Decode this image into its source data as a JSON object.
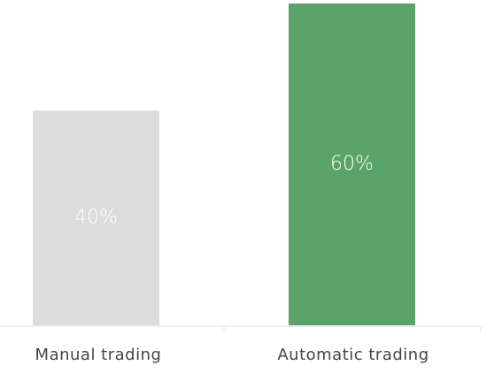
{
  "chart_data": {
    "type": "bar",
    "categories": [
      "Manual trading",
      "Automatic trading"
    ],
    "values": [
      40,
      60
    ],
    "data_labels": [
      "40%",
      "60%"
    ],
    "ylim": [
      0,
      60
    ],
    "grid": false,
    "legend": "none",
    "colors": {
      "bars": [
        "#dcdcdc",
        "#5aa469"
      ],
      "data_label": "#ffffff",
      "axis_line": "#dddddd",
      "tick_label": "#444444"
    }
  }
}
